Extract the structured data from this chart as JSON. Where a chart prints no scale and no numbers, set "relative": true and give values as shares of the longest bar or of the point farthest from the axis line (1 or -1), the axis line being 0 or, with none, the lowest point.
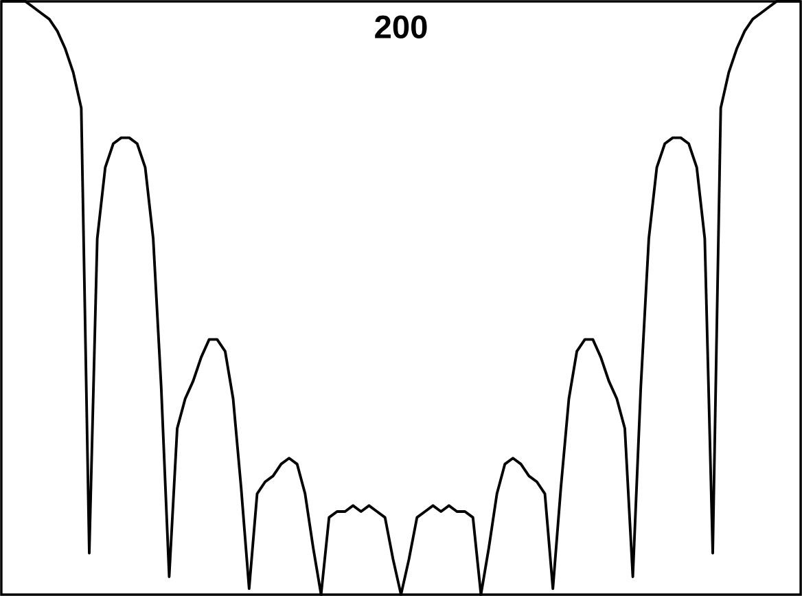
{
  "chart_data": {
    "type": "line",
    "title": "200",
    "relative": true,
    "color": "#000000",
    "categories": [
      null,
      null,
      null,
      null,
      null,
      null,
      null,
      null,
      null,
      null,
      null,
      null,
      null,
      null,
      null,
      null,
      null,
      null,
      null,
      null,
      null,
      null,
      null,
      null,
      null,
      null,
      null,
      null,
      null,
      null,
      null,
      null,
      null,
      null,
      null,
      null,
      null,
      null,
      null,
      null,
      null,
      null,
      null,
      null,
      null,
      null,
      null,
      null,
      null,
      null,
      null,
      null,
      null,
      null,
      null,
      null,
      null,
      null,
      null,
      null,
      null,
      null,
      null,
      null,
      null,
      null,
      null,
      null,
      null,
      null,
      null,
      null,
      null,
      null,
      null,
      null,
      null,
      null,
      null,
      null,
      null,
      null,
      null,
      null,
      null,
      null,
      null,
      null,
      null,
      null,
      null,
      null,
      null,
      null,
      null,
      null,
      null,
      null,
      null,
      null,
      null
    ],
    "values": [
      1.0,
      1.0,
      1.0,
      1.0,
      0.99,
      0.98,
      0.97,
      0.95,
      0.92,
      0.88,
      0.82,
      0.07,
      0.6,
      0.72,
      0.76,
      0.77,
      0.77,
      0.76,
      0.72,
      0.6,
      0.35,
      0.03,
      0.28,
      0.33,
      0.36,
      0.4,
      0.43,
      0.43,
      0.41,
      0.33,
      0.18,
      0.01,
      0.17,
      0.19,
      0.2,
      0.22,
      0.23,
      0.22,
      0.17,
      0.08,
      0.0,
      0.13,
      0.14,
      0.14,
      0.15,
      0.14,
      0.15,
      0.14,
      0.13,
      0.06,
      0.0,
      0.06,
      0.13,
      0.14,
      0.15,
      0.14,
      0.15,
      0.14,
      0.14,
      0.13,
      0.0,
      0.08,
      0.17,
      0.22,
      0.23,
      0.22,
      0.2,
      0.19,
      0.17,
      0.01,
      0.18,
      0.33,
      0.41,
      0.43,
      0.43,
      0.4,
      0.36,
      0.33,
      0.28,
      0.03,
      0.35,
      0.6,
      0.72,
      0.76,
      0.77,
      0.77,
      0.76,
      0.72,
      0.6,
      0.07,
      0.82,
      0.88,
      0.92,
      0.95,
      0.97,
      0.98,
      0.99,
      1.0,
      1.0,
      1.0,
      1.0
    ],
    "marker": "none",
    "line_style": "solid"
  }
}
